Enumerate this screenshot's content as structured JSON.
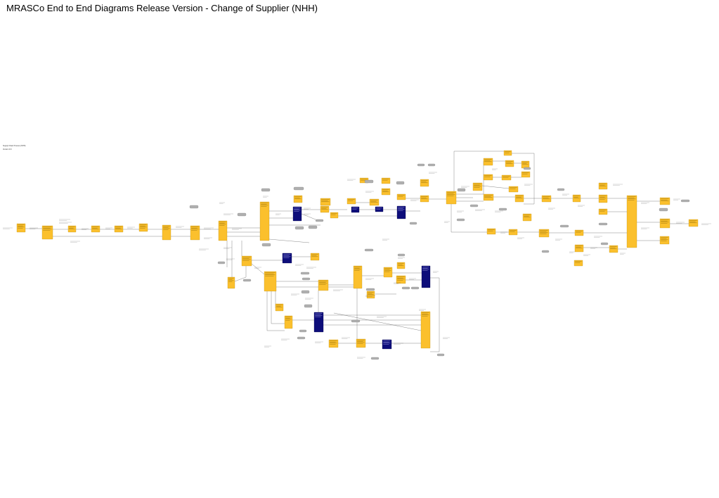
{
  "page": {
    "title": "MRASCo End to End Diagrams Release Version - Change of Supplier (NHH)",
    "legend": {
      "line1": "Supply Chain Process (NHH)",
      "line2": "Version 9.0"
    }
  },
  "colors": {
    "process_box": "#FBC02D",
    "process_box_border": "#B8860B",
    "system_box": "#0D0D7A",
    "data_flow_box": "#B0B0B0",
    "connector": "#555555",
    "annotation_text": "#444444"
  },
  "diagram": {
    "box_kinds": [
      "process",
      "system",
      "data-flow",
      "note"
    ]
  }
}
